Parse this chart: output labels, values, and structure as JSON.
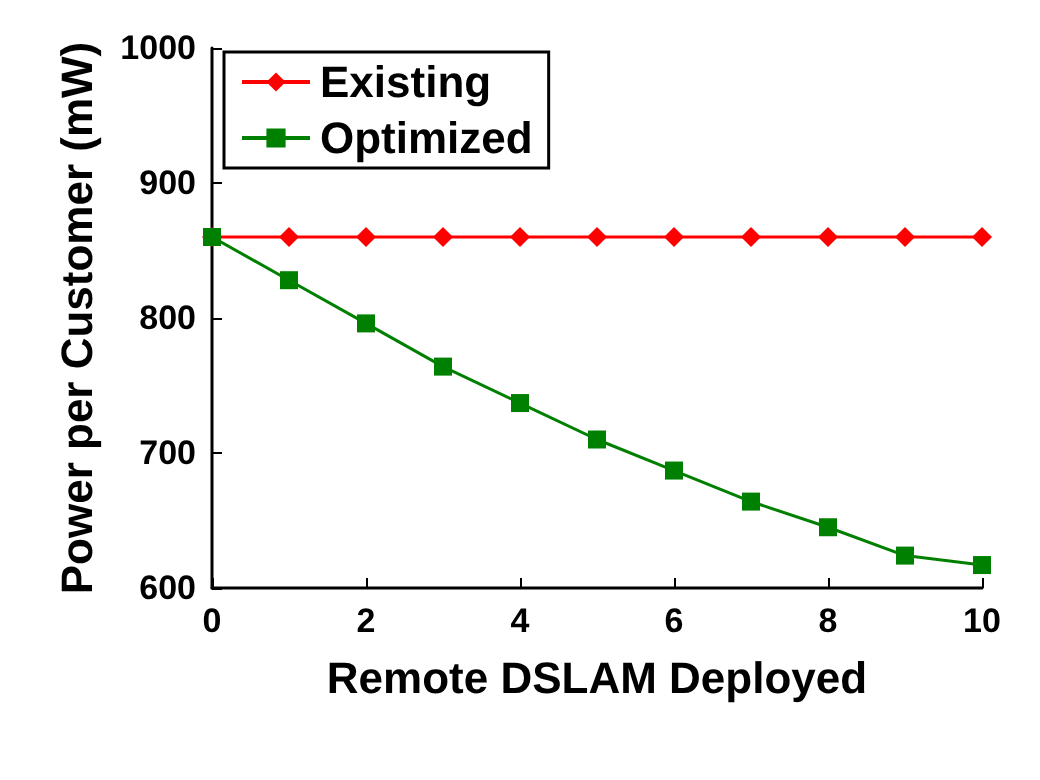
{
  "chart_data": {
    "type": "line",
    "xlabel": "Remote DSLAM Deployed",
    "ylabel": "Power per Customer (mW)",
    "x": [
      0,
      1,
      2,
      3,
      4,
      5,
      6,
      7,
      8,
      9,
      10
    ],
    "series": [
      {
        "name": "Existing",
        "color": "#ff0000",
        "marker": "diamond",
        "values": [
          860,
          860,
          860,
          860,
          860,
          860,
          860,
          860,
          860,
          860,
          860
        ]
      },
      {
        "name": "Optimized",
        "color": "#008000",
        "marker": "square",
        "values": [
          860,
          828,
          796,
          764,
          737,
          710,
          687,
          664,
          645,
          624,
          617
        ]
      }
    ],
    "xlim": [
      0,
      10
    ],
    "xticks": [
      0,
      2,
      4,
      6,
      8,
      10
    ],
    "ylim": [
      600,
      1000
    ],
    "yticks": [
      600,
      700,
      800,
      900,
      1000
    ],
    "grid": false,
    "legend": "top left",
    "line_style": "solid"
  }
}
